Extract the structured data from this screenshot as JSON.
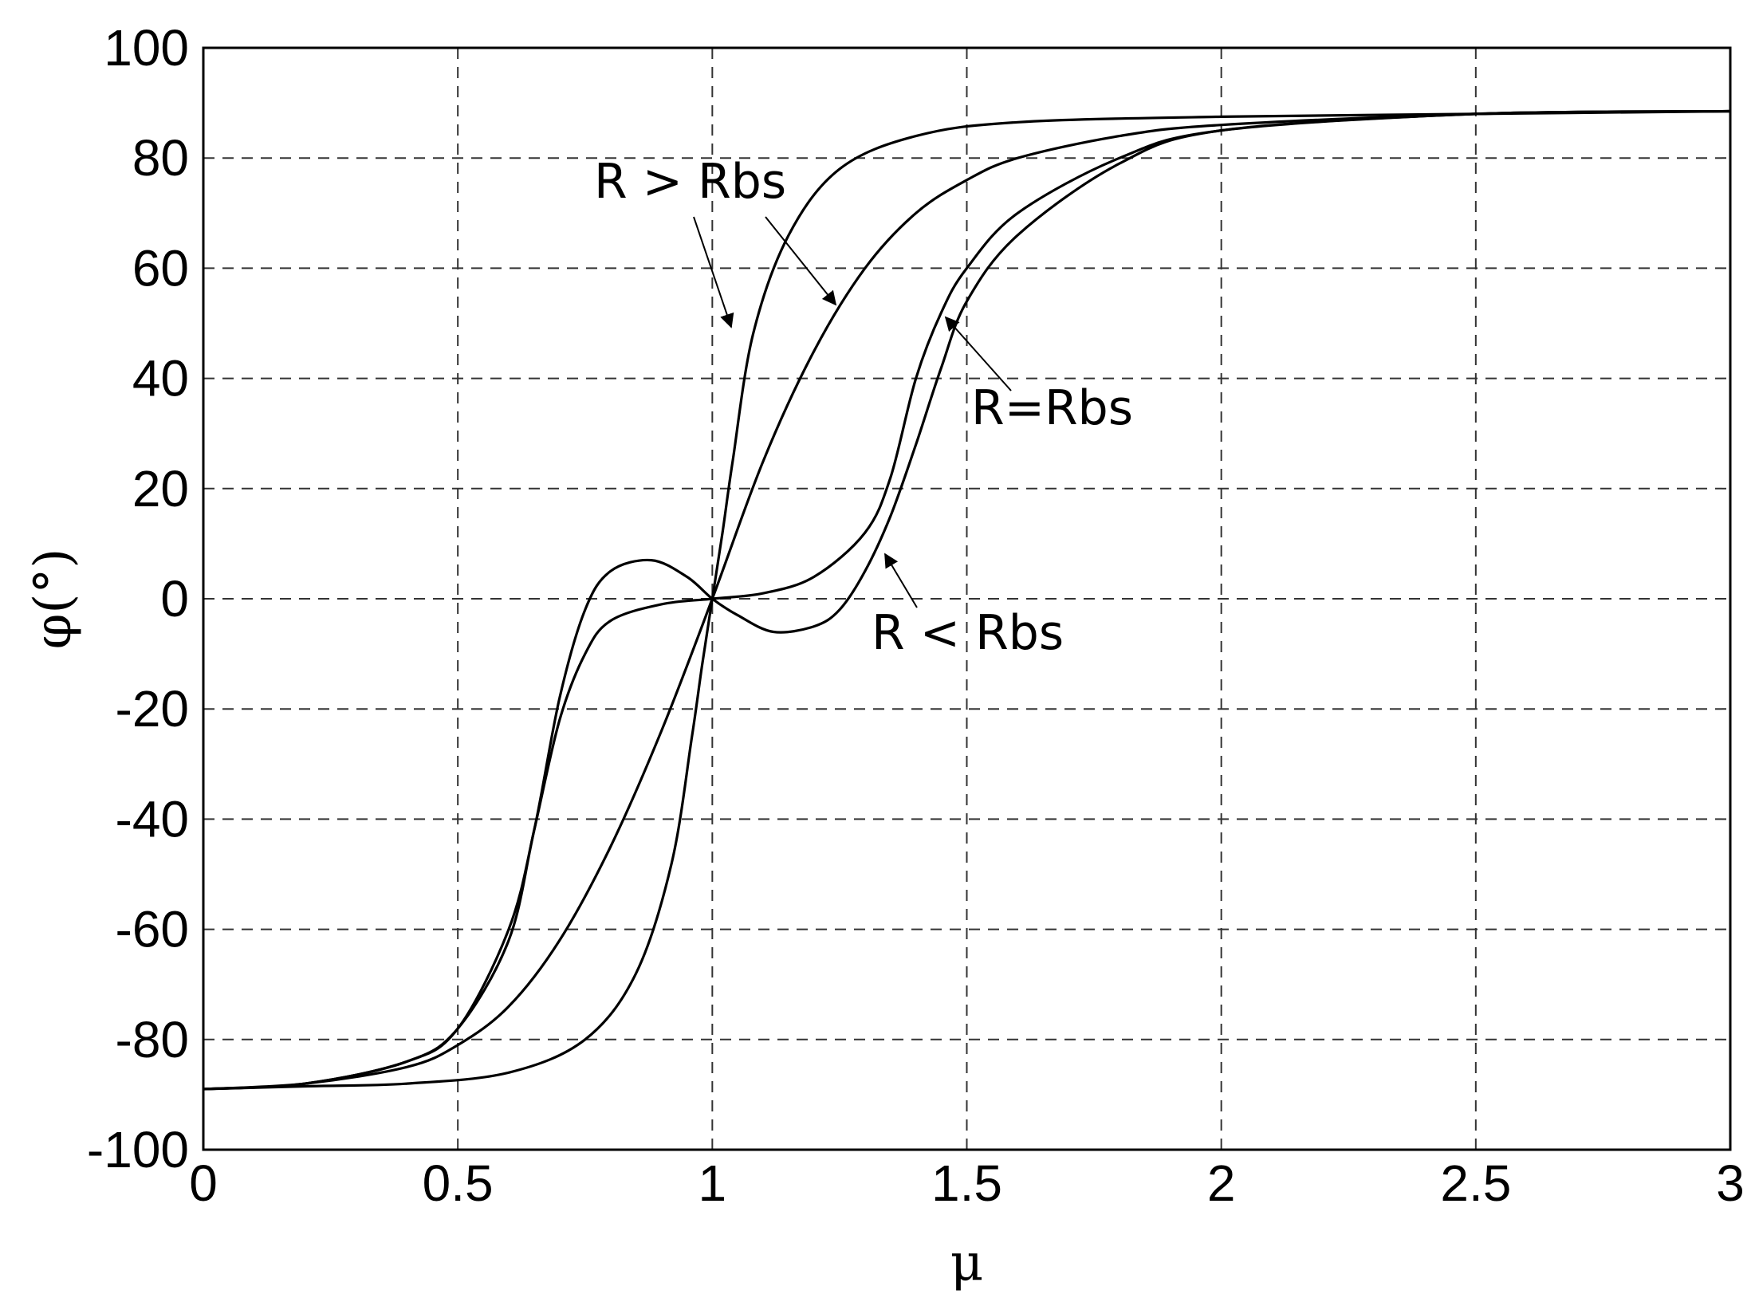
{
  "chart_data": {
    "type": "line",
    "xlabel": "μ",
    "ylabel": "φ(°)",
    "xlim": [
      0,
      3
    ],
    "ylim": [
      -100,
      100
    ],
    "x_ticks": [
      0,
      0.5,
      1,
      1.5,
      2,
      2.5,
      3
    ],
    "x_tick_labels": [
      "0",
      "0.5",
      "1",
      "1.5",
      "2",
      "2.5",
      "3"
    ],
    "y_ticks": [
      100,
      80,
      60,
      40,
      20,
      0,
      -20,
      -40,
      -60,
      -80,
      -100
    ],
    "y_tick_labels": [
      "100",
      "80",
      "60",
      "40",
      "20",
      "0",
      "-20",
      "-40",
      "-60",
      "-80",
      "-100"
    ],
    "grid": true,
    "series": [
      {
        "x": [
          0,
          0.2,
          0.4,
          0.6,
          0.75,
          0.85,
          0.92,
          0.96,
          0.98,
          1.0,
          1.02,
          1.04,
          1.08,
          1.15,
          1.25,
          1.4,
          1.6,
          2.0,
          2.5,
          3.0
        ],
        "y": [
          -89,
          -88.5,
          -88,
          -86,
          -80,
          -68,
          -48,
          -25,
          -12,
          0,
          12,
          25,
          48,
          66,
          78,
          84,
          86.5,
          87.5,
          88,
          88.5
        ]
      },
      {
        "x": [
          0,
          0.2,
          0.4,
          0.5,
          0.6,
          0.7,
          0.8,
          0.9,
          1.0,
          1.1,
          1.2,
          1.3,
          1.4,
          1.5,
          1.6,
          1.8,
          2.0,
          2.5,
          3.0
        ],
        "y": [
          -89,
          -88,
          -85,
          -81,
          -74,
          -62,
          -45,
          -24,
          0,
          25,
          45,
          60,
          70,
          76,
          80,
          84,
          86,
          88,
          88.5
        ]
      },
      {
        "x": [
          0,
          0.2,
          0.4,
          0.5,
          0.6,
          0.65,
          0.7,
          0.75,
          0.8,
          0.9,
          1.0,
          1.1,
          1.2,
          1.3,
          1.35,
          1.4,
          1.45,
          1.5,
          1.6,
          1.8,
          2.0,
          2.5,
          3.0
        ],
        "y": [
          -89,
          -88,
          -84,
          -78,
          -62,
          -42,
          -22,
          -10,
          -4,
          -1,
          0,
          1,
          4,
          12,
          22,
          40,
          52,
          60,
          70,
          80,
          85,
          88,
          88.5
        ]
      },
      {
        "x": [
          0,
          0.2,
          0.4,
          0.5,
          0.6,
          0.65,
          0.7,
          0.75,
          0.8,
          0.88,
          0.95,
          1.0,
          1.05,
          1.12,
          1.2,
          1.25,
          1.3,
          1.35,
          1.4,
          1.45,
          1.5,
          1.6,
          1.8,
          2.0,
          2.5,
          3.0
        ],
        "y": [
          -89,
          -88,
          -84,
          -78,
          -60,
          -42,
          -18,
          -2,
          5,
          7,
          4,
          0,
          -3,
          -6,
          -5,
          -2,
          5,
          15,
          28,
          42,
          54,
          66,
          79,
          85,
          88,
          88.5
        ]
      }
    ],
    "annotations": [
      {
        "text": "R > Rbs"
      },
      {
        "text": "R=Rbs"
      },
      {
        "text": "R < Rbs"
      }
    ]
  }
}
